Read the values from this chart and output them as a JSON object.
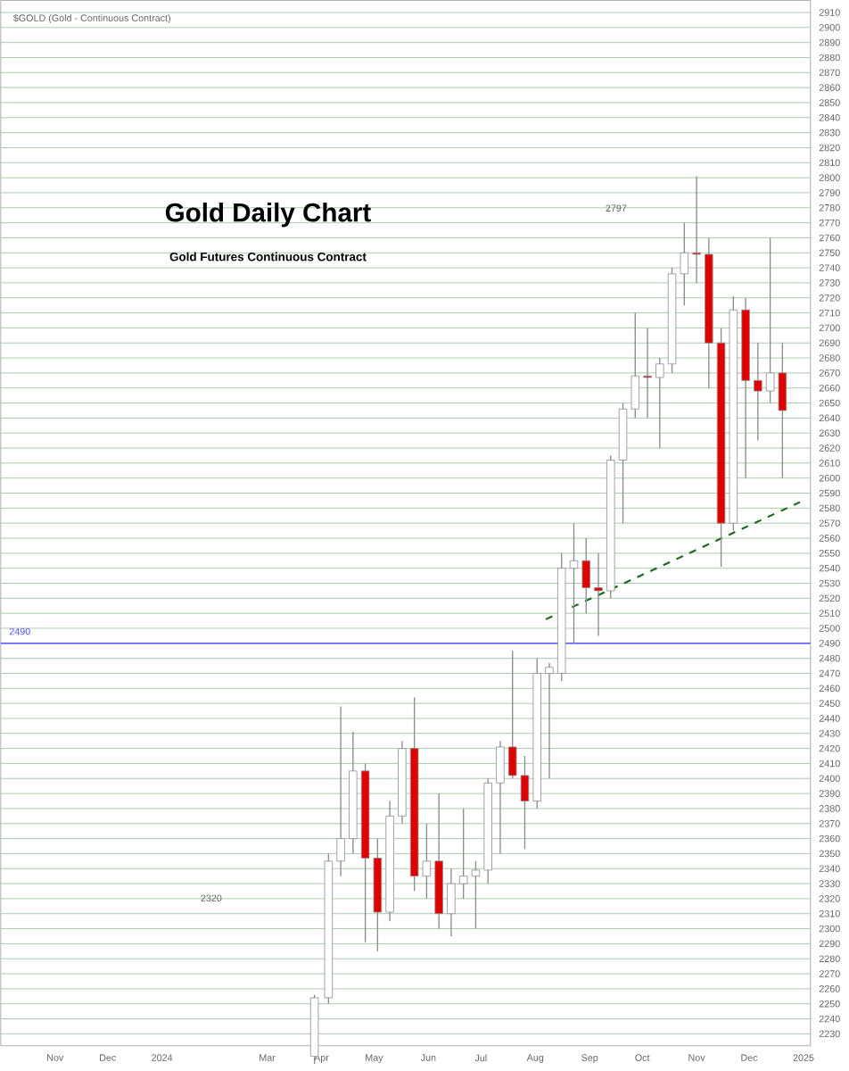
{
  "chart_data": {
    "type": "candlestick",
    "title": "Gold Daily Chart",
    "subtitle": "Gold Futures Continuous Contract",
    "annotations": [
      "$GOLD (Gold - Continuous Contract)",
      "2320",
      "2797"
    ],
    "x": [
      "2024-03-28",
      "2024-04-05",
      "2024-04-12",
      "2024-04-19",
      "2024-04-26",
      "2024-05-03",
      "2024-05-10",
      "2024-05-17",
      "2024-05-24",
      "2024-05-31",
      "2024-06-07",
      "2024-06-14",
      "2024-06-21",
      "2024-06-28",
      "2024-07-05",
      "2024-07-12",
      "2024-07-19",
      "2024-07-26",
      "2024-08-02",
      "2024-08-09",
      "2024-08-16",
      "2024-08-23",
      "2024-08-30",
      "2024-09-06",
      "2024-09-13",
      "2024-09-20",
      "2024-09-27",
      "2024-10-04",
      "2024-10-11",
      "2024-10-18",
      "2024-10-25",
      "2024-11-01",
      "2024-11-08",
      "2024-11-15",
      "2024-11-22",
      "2024-11-29",
      "2024-12-06",
      "2024-12-13",
      "2024-12-20"
    ],
    "ohlc": [
      [
        2215,
        2256,
        2210,
        2254
      ],
      [
        2254,
        2350,
        2250,
        2345
      ],
      [
        2345,
        2448,
        2335,
        2360
      ],
      [
        2360,
        2431,
        2350,
        2405
      ],
      [
        2405,
        2410,
        2291,
        2347
      ],
      [
        2347,
        2360,
        2285,
        2311
      ],
      [
        2311,
        2385,
        2305,
        2375
      ],
      [
        2375,
        2425,
        2370,
        2420
      ],
      [
        2420,
        2454,
        2325,
        2335
      ],
      [
        2335,
        2370,
        2320,
        2345
      ],
      [
        2345,
        2390,
        2300,
        2310
      ],
      [
        2310,
        2340,
        2295,
        2330
      ],
      [
        2330,
        2380,
        2320,
        2335
      ],
      [
        2335,
        2345,
        2300,
        2339
      ],
      [
        2339,
        2400,
        2330,
        2397
      ],
      [
        2397,
        2425,
        2350,
        2421
      ],
      [
        2421,
        2485,
        2400,
        2402
      ],
      [
        2402,
        2415,
        2353,
        2385
      ],
      [
        2385,
        2480,
        2380,
        2470
      ],
      [
        2470,
        2477,
        2400,
        2474
      ],
      [
        2470,
        2550,
        2465,
        2540
      ],
      [
        2540,
        2570,
        2490,
        2545
      ],
      [
        2545,
        2560,
        2510,
        2527
      ],
      [
        2527,
        2550,
        2495,
        2525
      ],
      [
        2525,
        2615,
        2520,
        2612
      ],
      [
        2612,
        2650,
        2570,
        2646
      ],
      [
        2646,
        2710,
        2640,
        2668
      ],
      [
        2668,
        2700,
        2640,
        2667
      ],
      [
        2667,
        2680,
        2620,
        2676
      ],
      [
        2676,
        2740,
        2670,
        2736
      ],
      [
        2736,
        2770,
        2715,
        2750
      ],
      [
        2750,
        2801,
        2730,
        2749
      ],
      [
        2749,
        2760,
        2660,
        2690
      ],
      [
        2690,
        2700,
        2541,
        2570
      ],
      [
        2570,
        2721,
        2565,
        2712
      ],
      [
        2712,
        2720,
        2600,
        2665
      ],
      [
        2665,
        2690,
        2625,
        2658
      ],
      [
        2658,
        2760,
        2650,
        2670
      ],
      [
        2670,
        2690,
        2600,
        2645
      ]
    ],
    "colors": [
      "#ffffff",
      "#ffffff",
      "#ffffff",
      "#ffffff",
      "#e00000",
      "#e00000",
      "#ffffff",
      "#ffffff",
      "#e00000",
      "#ffffff",
      "#e00000",
      "#ffffff",
      "#ffffff",
      "#ffffff",
      "#ffffff",
      "#ffffff",
      "#e00000",
      "#e00000",
      "#ffffff",
      "#ffffff",
      "#ffffff",
      "#ffffff",
      "#e00000",
      "#e00000",
      "#ffffff",
      "#ffffff",
      "#ffffff",
      "#e00000",
      "#ffffff",
      "#ffffff",
      "#ffffff",
      "#e00000",
      "#e00000",
      "#e00000",
      "#ffffff",
      "#e00000",
      "#e00000",
      "#ffffff",
      "#e00000"
    ],
    "series": [
      {
        "type": "line",
        "color": "#1a6b1a",
        "line_style": "dashed",
        "x": [
          "2024-08-07",
          "2024-12-30"
        ],
        "values": [
          2506,
          2584
        ]
      }
    ],
    "ref_lines": [
      {
        "axis": "y",
        "value": 2490,
        "label": "2490",
        "color": "#5555ff"
      }
    ],
    "xlim": [
      "2023-10-01",
      "2025-01-05"
    ],
    "xticks": [
      {
        "value": "2023-11-01",
        "label": "Nov"
      },
      {
        "value": "2023-12-01",
        "label": "Dec"
      },
      {
        "value": "2024-01-01",
        "label": "2024"
      },
      {
        "value": "2024-03-01",
        "label": "Mar"
      },
      {
        "value": "2024-04-01",
        "label": "Apr"
      },
      {
        "value": "2024-05-01",
        "label": "May"
      },
      {
        "value": "2024-06-01",
        "label": "Jun"
      },
      {
        "value": "2024-07-01",
        "label": "Jul"
      },
      {
        "value": "2024-08-01",
        "label": "Aug"
      },
      {
        "value": "2024-09-01",
        "label": "Sep"
      },
      {
        "value": "2024-10-01",
        "label": "Oct"
      },
      {
        "value": "2024-11-01",
        "label": "Nov"
      },
      {
        "value": "2024-12-01",
        "label": "Dec"
      },
      {
        "value": "2025-01-01",
        "label": "2025"
      }
    ],
    "ylim": [
      2222,
      2918
    ],
    "yticks": [
      2230,
      2240,
      2250,
      2260,
      2270,
      2280,
      2290,
      2300,
      2310,
      2320,
      2330,
      2340,
      2350,
      2360,
      2370,
      2380,
      2390,
      2400,
      2410,
      2420,
      2430,
      2440,
      2450,
      2460,
      2470,
      2480,
      2490,
      2500,
      2510,
      2520,
      2530,
      2540,
      2550,
      2560,
      2570,
      2580,
      2590,
      2600,
      2610,
      2620,
      2630,
      2640,
      2650,
      2660,
      2670,
      2680,
      2690,
      2700,
      2710,
      2720,
      2730,
      2740,
      2750,
      2760,
      2770,
      2780,
      2790,
      2800,
      2810,
      2820,
      2830,
      2840,
      2850,
      2860,
      2870,
      2880,
      2890,
      2900,
      2910
    ],
    "grid": "y"
  }
}
